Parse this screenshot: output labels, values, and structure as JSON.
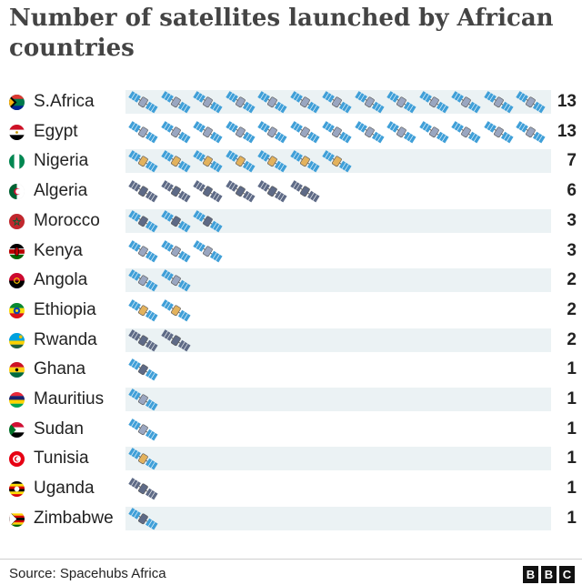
{
  "title": "Number of satellites launched by African countries",
  "source": "Source: Spacehubs Africa",
  "logo": {
    "letters": [
      "B",
      "B",
      "C"
    ]
  },
  "colors": {
    "band": "#ebf2f4",
    "panel": "#3f9fd8",
    "body_light": "#9aa6c0",
    "body_dark": "#5e6a86",
    "body_gold": "#e3b25d"
  },
  "chart_data": {
    "type": "bar",
    "title": "Number of satellites launched by African countries",
    "xlabel": "",
    "ylabel": "",
    "categories": [
      "S.Africa",
      "Egypt",
      "Nigeria",
      "Algeria",
      "Morocco",
      "Kenya",
      "Angola",
      "Ethiopia",
      "Rwanda",
      "Ghana",
      "Mauritius",
      "Sudan",
      "Tunisia",
      "Uganda",
      "Zimbabwe"
    ],
    "values": [
      13,
      13,
      7,
      6,
      3,
      3,
      2,
      2,
      2,
      1,
      1,
      1,
      1,
      1,
      1
    ],
    "icon": "satellite-icon",
    "satellite_styles": [
      "blue",
      "blue",
      "gold",
      "dark",
      "blue-dark",
      "blue",
      "blue",
      "gold",
      "dark",
      "blue-dark",
      "blue",
      "blue",
      "gold",
      "dark",
      "blue-dark"
    ],
    "flag_icons": [
      "south-africa-flag-icon",
      "egypt-flag-icon",
      "nigeria-flag-icon",
      "algeria-flag-icon",
      "morocco-flag-icon",
      "kenya-flag-icon",
      "angola-flag-icon",
      "ethiopia-flag-icon",
      "rwanda-flag-icon",
      "ghana-flag-icon",
      "mauritius-flag-icon",
      "sudan-flag-icon",
      "tunisia-flag-icon",
      "uganda-flag-icon",
      "zimbabwe-flag-icon"
    ]
  }
}
